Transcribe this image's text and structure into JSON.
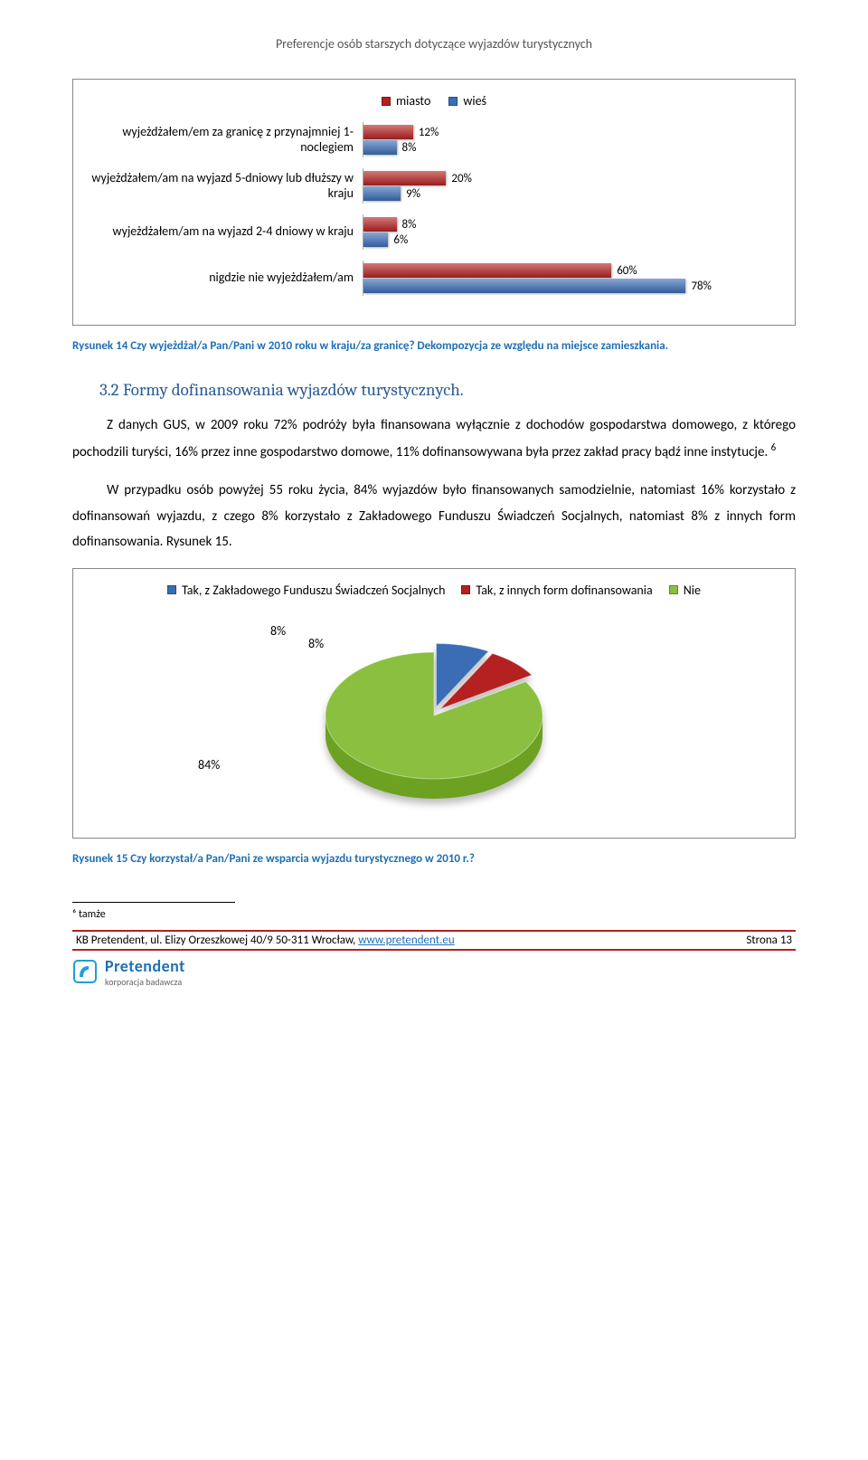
{
  "page_header": "Preferencje osób starszych dotyczące wyjazdów turystycznych",
  "chart1": {
    "type": "bar",
    "legend": [
      {
        "label": "miasto",
        "color": "#b52020"
      },
      {
        "label": "wieś",
        "color": "#3a6db5"
      }
    ],
    "track_scale": 100,
    "rows": [
      {
        "label": "wyjeżdżałem/em za granicę z przynajmniej 1-noclegiem",
        "bars": [
          {
            "color": "#b52020",
            "value": 12,
            "text": "12%"
          },
          {
            "color": "#3a6db5",
            "value": 8,
            "text": "8%"
          }
        ]
      },
      {
        "label": "wyjeżdżałem/am na wyjazd 5-dniowy lub dłuższy w kraju",
        "bars": [
          {
            "color": "#b52020",
            "value": 20,
            "text": "20%"
          },
          {
            "color": "#3a6db5",
            "value": 9,
            "text": "9%"
          }
        ]
      },
      {
        "label": "wyjeżdżałem/am na wyjazd 2-4 dniowy w kraju",
        "bars": [
          {
            "color": "#b52020",
            "value": 8,
            "text": "8%"
          },
          {
            "color": "#3a6db5",
            "value": 6,
            "text": "6%"
          }
        ]
      },
      {
        "label": "nigdzie nie wyjeżdżałem/am",
        "bars": [
          {
            "color": "#b52020",
            "value": 60,
            "text": "60%"
          },
          {
            "color": "#3a6db5",
            "value": 78,
            "text": "78%"
          }
        ]
      }
    ]
  },
  "fig14_caption": "Rysunek 14 Czy wyjeżdżał/a Pan/Pani w 2010 roku w kraju/za granicę? Dekompozycja ze względu na miejsce zamieszkania.",
  "section_heading": "3.2 Formy dofinansowania wyjazdów turystycznych.",
  "para1": "Z danych GUS, w 2009 roku 72% podróży była finansowana wyłącznie z dochodów gospodarstwa domowego, z którego pochodzili turyści, 16% przez inne gospodarstwo domowe, 11% dofinansowywana była przez zakład pracy bądź inne instytucje.",
  "para1_sup": "6",
  "para2": "W przypadku osób powyżej 55 roku życia, 84% wyjazdów było finansowanych samodzielnie, natomiast 16% korzystało z dofinansowań wyjazdu, z czego 8% korzystało z Zakładowego Funduszu Świadczeń Socjalnych, natomiast 8% z innych form dofinansowania. Rysunek 15.",
  "chart2": {
    "type": "pie",
    "legend": [
      {
        "label": "Tak, z Zakładowego Funduszu Świadczeń Socjalnych",
        "color": "#3a6db5"
      },
      {
        "label": "Tak, z innych form dofinansowania",
        "color": "#b52020"
      },
      {
        "label": "Nie",
        "color": "#8bbf3f"
      }
    ],
    "slices": {
      "blue": {
        "value": 8,
        "text": "8%",
        "color": "#3a6db5"
      },
      "red": {
        "value": 8,
        "text": "8%",
        "color": "#b52020"
      },
      "green": {
        "value": 84,
        "text": "84%",
        "color": "#8bbf3f"
      }
    }
  },
  "fig15_caption": "Rysunek 15 Czy korzystał/a Pan/Pani ze wsparcia wyjazdu turystycznego w 2010 r.?",
  "footnote": "⁶ tamże",
  "footer": {
    "left_prefix": "KB Pretendent, ul. Elizy Orzeszkowej 40/9 50-311 Wrocław, ",
    "link": "www.pretendent.eu",
    "right": "Strona 13"
  },
  "brand": {
    "name": "Pretendent",
    "sub": "korporacja badawcza",
    "icon_color": "#1f9fd6"
  }
}
